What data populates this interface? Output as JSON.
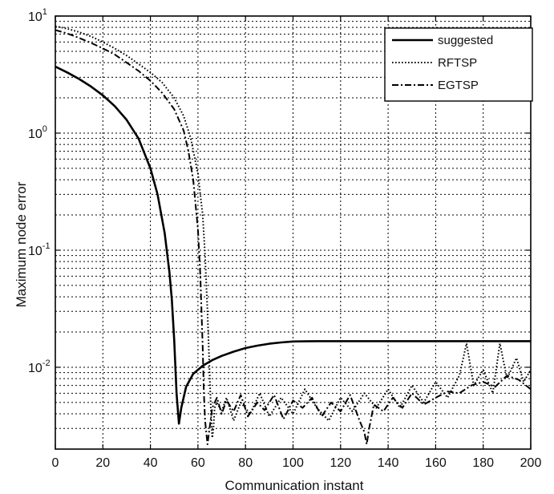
{
  "chart_data": {
    "type": "line",
    "xlabel": "Communication instant",
    "ylabel": "Maximum node error",
    "xlim": [
      0,
      200
    ],
    "ylim": [
      0.002,
      10
    ],
    "yscale": "log",
    "grid": true,
    "legend_position": "top-right",
    "x_ticks": [
      0,
      20,
      40,
      60,
      80,
      100,
      120,
      140,
      160,
      180,
      200
    ],
    "y_ticks": [
      {
        "base": "10",
        "exp": "1",
        "value": 10
      },
      {
        "base": "10",
        "exp": "0",
        "value": 1
      },
      {
        "base": "10",
        "exp": "-1",
        "value": 0.1
      },
      {
        "base": "10",
        "exp": "-2",
        "value": 0.01
      }
    ],
    "series": [
      {
        "name": "suggested",
        "style": "solid",
        "x": [
          0,
          5,
          10,
          15,
          20,
          25,
          30,
          35,
          40,
          43,
          46,
          48,
          49,
          50,
          51,
          52,
          53,
          55,
          58,
          62,
          66,
          70,
          75,
          80,
          85,
          90,
          95,
          100,
          110,
          120,
          140,
          160,
          180,
          200
        ],
        "y": [
          3.7,
          3.3,
          2.9,
          2.5,
          2.1,
          1.7,
          1.3,
          0.9,
          0.5,
          0.3,
          0.14,
          0.065,
          0.038,
          0.017,
          0.006,
          0.0033,
          0.0045,
          0.0068,
          0.0088,
          0.0103,
          0.0115,
          0.0125,
          0.0136,
          0.0146,
          0.0153,
          0.0159,
          0.0163,
          0.0166,
          0.0167,
          0.0167,
          0.0167,
          0.0167,
          0.0167,
          0.0167
        ]
      },
      {
        "name": "RFTSP",
        "style": "dotted",
        "x": [
          0,
          5,
          10,
          15,
          20,
          25,
          30,
          35,
          40,
          45,
          50,
          54,
          57,
          60,
          62,
          63,
          64,
          65,
          65.5,
          66,
          66.5,
          67,
          68,
          70,
          72,
          75,
          78,
          82,
          86,
          90,
          95,
          100,
          105,
          110,
          115,
          120,
          125,
          130,
          135,
          140,
          145,
          150,
          155,
          160,
          165,
          170,
          173,
          176,
          180,
          184,
          187,
          190,
          194,
          197,
          200
        ],
        "y": [
          8.2,
          7.8,
          7.3,
          6.7,
          6.0,
          5.3,
          4.6,
          3.9,
          3.3,
          2.7,
          2.0,
          1.4,
          0.9,
          0.45,
          0.2,
          0.09,
          0.03,
          0.008,
          0.004,
          0.0025,
          0.003,
          0.0045,
          0.005,
          0.0042,
          0.0055,
          0.0035,
          0.005,
          0.004,
          0.006,
          0.0038,
          0.0055,
          0.004,
          0.0065,
          0.0045,
          0.0035,
          0.0055,
          0.0042,
          0.006,
          0.0045,
          0.0065,
          0.0045,
          0.007,
          0.005,
          0.0075,
          0.0055,
          0.0085,
          0.016,
          0.007,
          0.0095,
          0.006,
          0.016,
          0.008,
          0.012,
          0.0075,
          0.0095
        ]
      },
      {
        "name": "EGTSP",
        "style": "dash-dot",
        "x": [
          0,
          5,
          10,
          15,
          20,
          25,
          30,
          35,
          40,
          45,
          50,
          54,
          56,
          58,
          60,
          61,
          62,
          62.5,
          63,
          64,
          66,
          68,
          70,
          72,
          75,
          78,
          81,
          85,
          88,
          92,
          96,
          100,
          104,
          108,
          112,
          116,
          120,
          124,
          128,
          130,
          131,
          132,
          134,
          138,
          142,
          146,
          150,
          155,
          160,
          165,
          170,
          175,
          180,
          185,
          190,
          195,
          200
        ],
        "y": [
          7.6,
          7.1,
          6.5,
          5.9,
          5.3,
          4.7,
          4.0,
          3.4,
          2.8,
          2.2,
          1.6,
          1.05,
          0.7,
          0.4,
          0.15,
          0.06,
          0.015,
          0.006,
          0.0035,
          0.0022,
          0.0045,
          0.0055,
          0.004,
          0.0052,
          0.0042,
          0.0058,
          0.0038,
          0.005,
          0.0043,
          0.0058,
          0.0036,
          0.0052,
          0.0045,
          0.0055,
          0.0038,
          0.005,
          0.0042,
          0.0058,
          0.0035,
          0.0028,
          0.0022,
          0.003,
          0.0048,
          0.0042,
          0.0055,
          0.0045,
          0.006,
          0.0048,
          0.0055,
          0.0062,
          0.006,
          0.007,
          0.0075,
          0.0068,
          0.0085,
          0.0078,
          0.0065
        ]
      }
    ]
  }
}
